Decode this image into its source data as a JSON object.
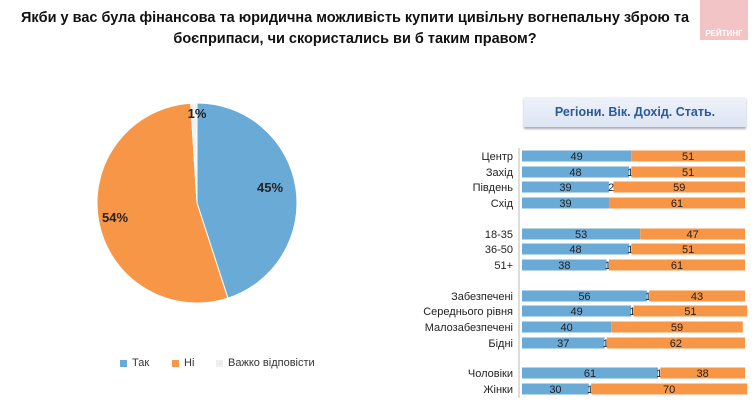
{
  "title": "Якби у вас була фінансова та юридична можливість купити цивільну вогнепальну зброю та боєприпаси, чи скористались ви б таким правом?",
  "logo_text": "РЕЙТИНГ",
  "subheader": "Регіони. Вік. Дохід. Стать.",
  "colors": {
    "yes": "#6aaad6",
    "no": "#f79646",
    "hard": "#f2f2f2"
  },
  "chart_data": [
    {
      "type": "pie",
      "slices": [
        {
          "name": "Так",
          "value": 45,
          "label": "45%"
        },
        {
          "name": "Ні",
          "value": 54,
          "label": "54%"
        },
        {
          "name": "Важко відповісти",
          "value": 1,
          "label": "1%"
        }
      ],
      "legend": "bottom"
    },
    {
      "type": "bar",
      "stacked": true,
      "orientation": "horizontal",
      "series_order": [
        "Так",
        "Важко відповісти",
        "Ні"
      ],
      "rows": [
        {
          "label": "Центр",
          "values": [
            49,
            null,
            51
          ]
        },
        {
          "label": "Захід",
          "values": [
            48,
            1,
            51
          ]
        },
        {
          "label": "Південь",
          "values": [
            39,
            2,
            59
          ]
        },
        {
          "label": "Схід",
          "values": [
            39,
            null,
            61
          ]
        },
        {
          "label": "18-35",
          "values": [
            53,
            null,
            47
          ]
        },
        {
          "label": "36-50",
          "values": [
            48,
            1,
            51
          ]
        },
        {
          "label": "51+",
          "values": [
            38,
            1,
            61
          ]
        },
        {
          "label": "Забезпечені",
          "values": [
            56,
            1,
            43
          ]
        },
        {
          "label": "Середнього рівня",
          "values": [
            49,
            1,
            51
          ]
        },
        {
          "label": "Малозабезпечені",
          "values": [
            40,
            null,
            59
          ]
        },
        {
          "label": "Бідні",
          "values": [
            37,
            1,
            62
          ]
        },
        {
          "label": "Чоловіки",
          "values": [
            61,
            1,
            38
          ]
        },
        {
          "label": "Жінки",
          "values": [
            30,
            1,
            70
          ]
        }
      ]
    }
  ]
}
